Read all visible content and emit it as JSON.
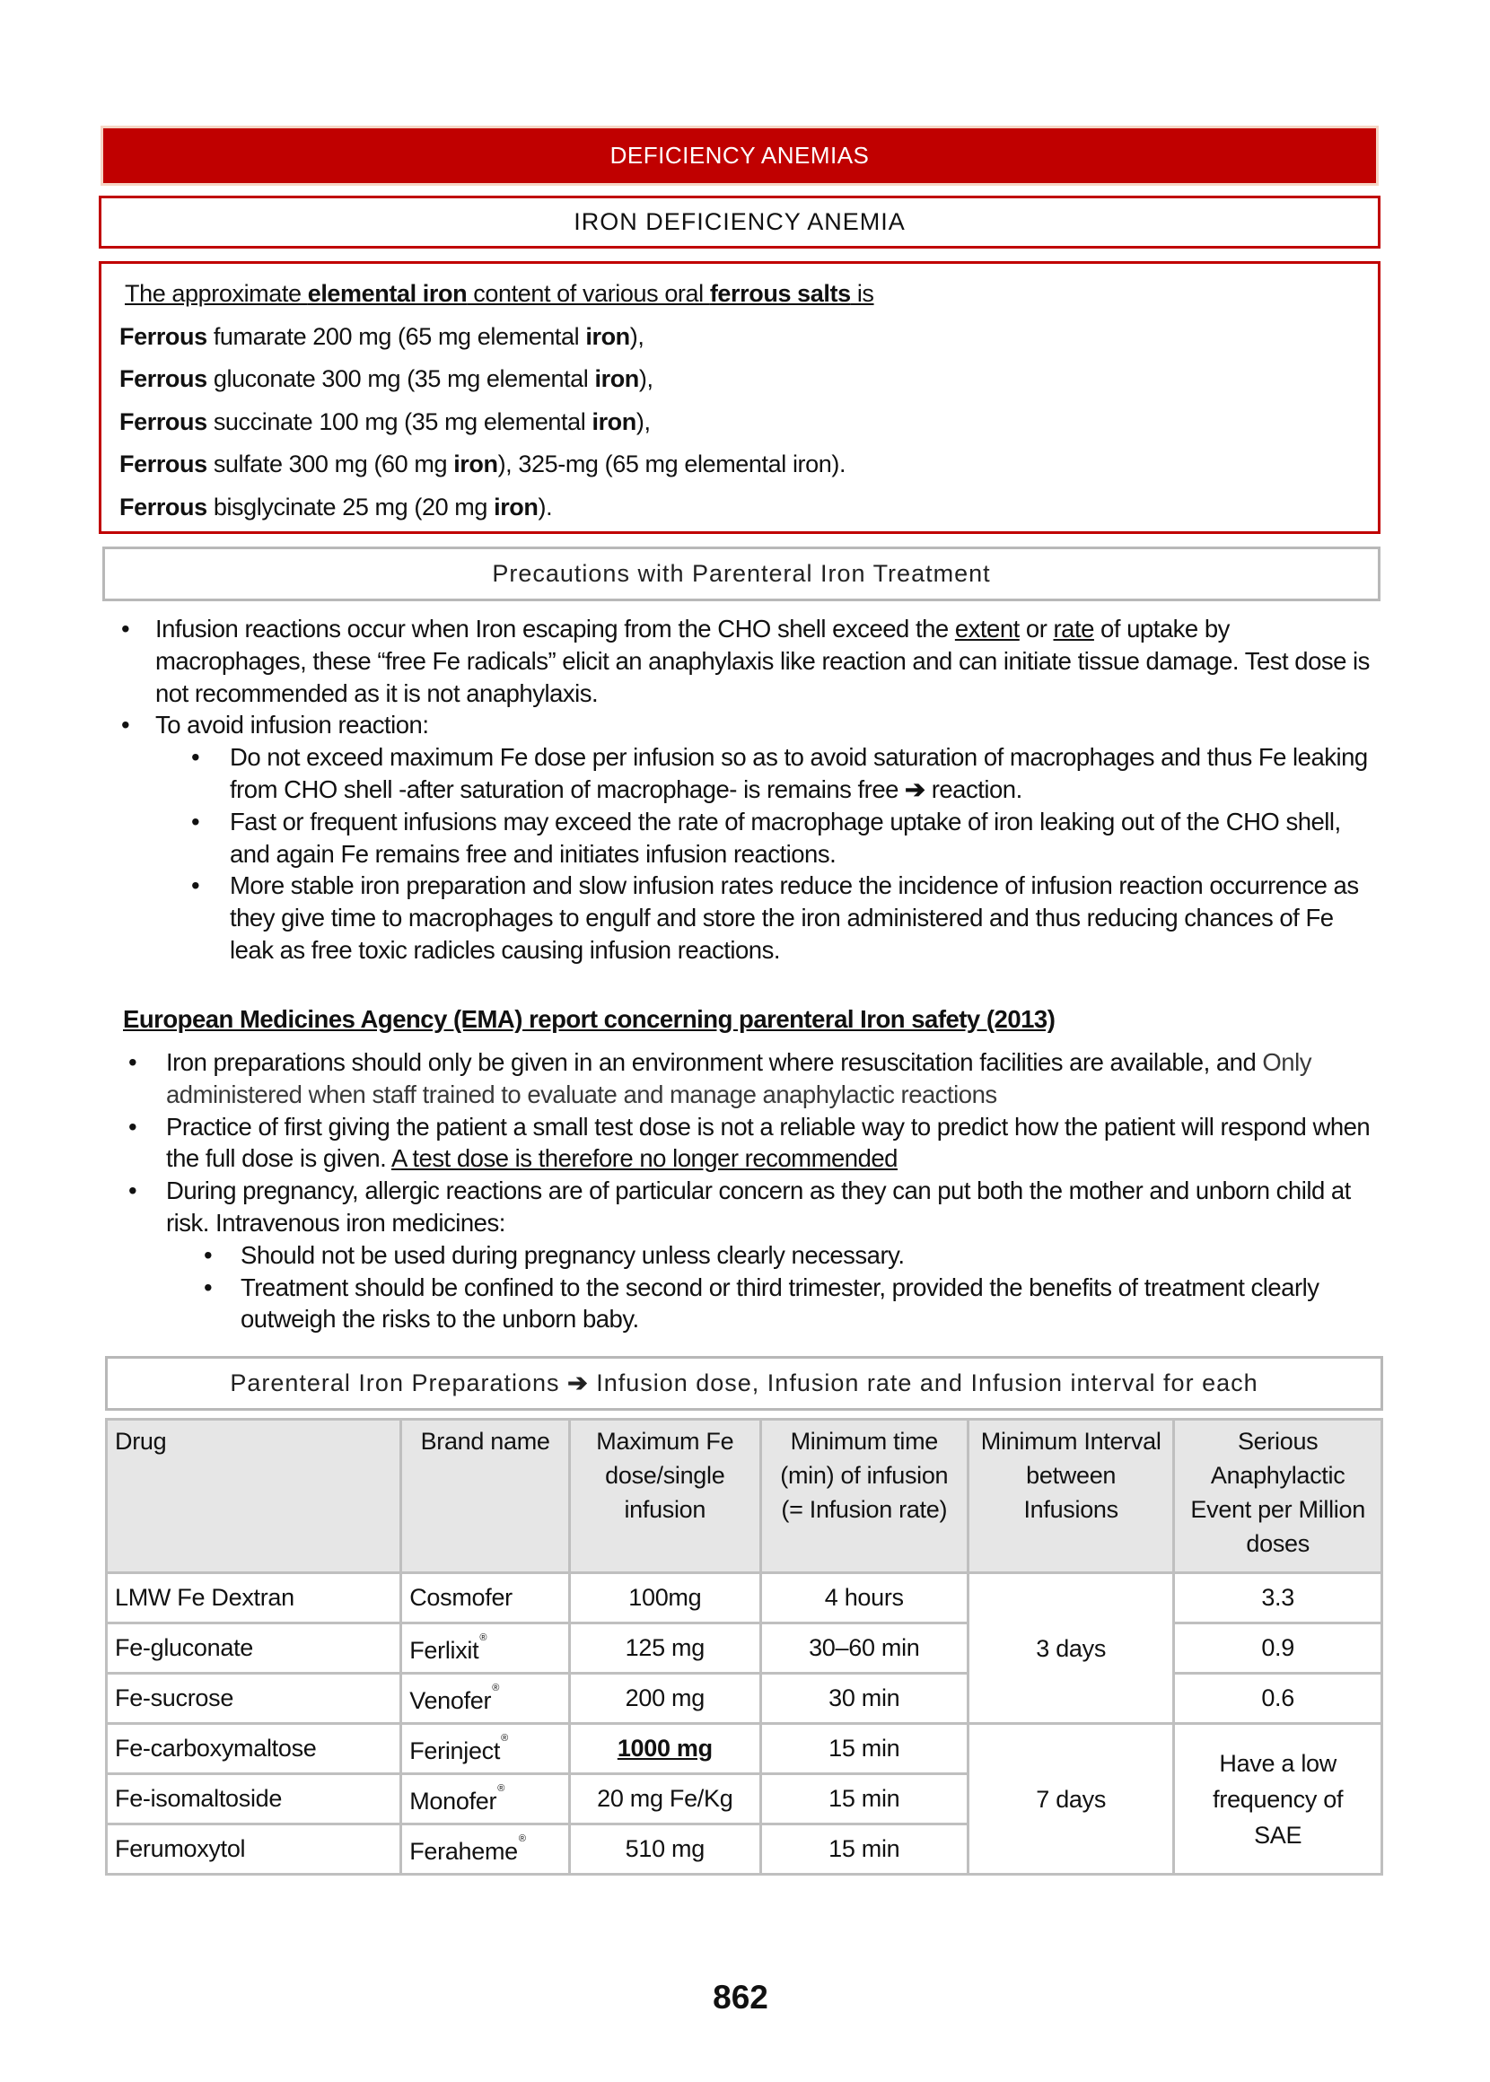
{
  "header": {
    "section_title": "DEFICIENCY ANEMIAS",
    "subsection_title": "IRON DEFICIENCY ANEMIA"
  },
  "salts": {
    "intro": [
      "The approximate ",
      "elemental iron",
      " content of various oral ",
      "ferrous salts",
      " is "
    ],
    "items": [
      [
        "Ferrous",
        " fumarate 200 mg (65 mg  elemental ",
        "iron",
        "),"
      ],
      [
        "Ferrous",
        " gluconate 300 mg (35 mg  elemental ",
        "iron",
        "),"
      ],
      [
        "Ferrous",
        " succinate 100 mg (35 mg  elemental ",
        "iron",
        "),"
      ],
      [
        "Ferrous",
        " sulfate 300 mg (60 mg ",
        "iron",
        "), 325-mg (65 mg elemental iron)."
      ],
      [
        "Ferrous",
        " bisglycinate 25 mg (20 mg ",
        "iron",
        ")."
      ]
    ]
  },
  "precautions": {
    "title": "Precautions with Parenteral Iron Treatment",
    "bullet1": [
      "Infusion reactions occur when Iron escaping from the CHO shell exceed the ",
      "extent",
      " or ",
      "rate",
      " of uptake by macrophages, these “free Fe radicals” elicit an anaphylaxis like reaction and can initiate tissue damage. Test dose is not recommended as it is not anaphylaxis."
    ],
    "bullet2": "To avoid infusion reaction:",
    "sub": [
      [
        "Do not exceed maximum Fe dose per infusion so as to avoid saturation of macrophages and thus Fe leaking from CHO shell -after saturation of macrophage- is remains free ",
        "➔",
        " reaction."
      ],
      "Fast or frequent infusions may exceed the rate of macrophage uptake of iron leaking out of the CHO shell, and again Fe remains free and initiates infusion reactions.",
      "More stable iron preparation and slow infusion rates reduce the incidence of infusion reaction occurrence as they give time to macrophages to engulf and store the iron administered and thus reducing chances of Fe leak as free toxic radicles causing infusion reactions."
    ],
    "bullet_symbol": "•"
  },
  "ema": {
    "heading": "European Medicines Agency (EMA) report concerning parenteral Iron safety (2013)",
    "bullet1": [
      "Iron preparations should only be given in an environment where resuscitation facilities are available, and ",
      "Only administered when staff trained to evaluate and manage anaphylactic reactions"
    ],
    "bullet2": [
      "Practice of first giving the patient a small test dose is not a reliable way to predict how the patient will respond when the full dose is given. ",
      "A test dose is therefore no longer recommended"
    ],
    "bullet3": "During pregnancy, allergic reactions are of particular concern as they can put both the mother and unborn child at risk. Intravenous iron medicines:",
    "sub": [
      "Should not be used during pregnancy unless clearly necessary.",
      "Treatment should be confined to the second or third trimester, provided the benefits of treatment clearly outweigh the risks to the unborn baby."
    ]
  },
  "table": {
    "title": [
      "Parenteral Iron Preparations ",
      "➔",
      " Infusion dose, Infusion rate and Infusion interval for each"
    ],
    "headers": [
      "Drug",
      "Brand name",
      "Maximum Fe dose/single infusion",
      "Minimum time (min) of infusion (= Infusion rate)",
      "Minimum Interval between Infusions",
      "Serious Anaphylactic Event per Million doses"
    ],
    "registered_mark": "®",
    "rows": [
      {
        "drug": "LMW Fe Dextran",
        "brand": "Cosmofer",
        "dose": "100mg",
        "time": "4 hours",
        "sae": "3.3"
      },
      {
        "drug": "Fe-gluconate",
        "brand": "Ferlixit",
        "dose": "125 mg",
        "time": "30–60 min",
        "sae": "0.9"
      },
      {
        "drug": "Fe-sucrose",
        "brand": "Venofer",
        "dose": "200 mg",
        "time": "30 min",
        "sae": "0.6"
      },
      {
        "drug": "Fe-carboxymaltose",
        "brand": "Ferinject",
        "dose": "1000 mg",
        "time": "15 min"
      },
      {
        "drug": "Fe-isomaltoside",
        "brand": "Monofer",
        "dose": "20 mg Fe/Kg",
        "time": "15 min"
      },
      {
        "drug": "Ferumoxytol",
        "brand": "Feraheme",
        "dose": "510 mg",
        "time": "15 min"
      }
    ],
    "interval_groups": [
      "3 days",
      "7 days"
    ],
    "sae_group": "Have a low frequency of SAE"
  },
  "page_number": "862",
  "colors": {
    "accent_red": "#c00000",
    "border_gray": "#bfbfbf",
    "header_bg": "#e6e6e6"
  }
}
